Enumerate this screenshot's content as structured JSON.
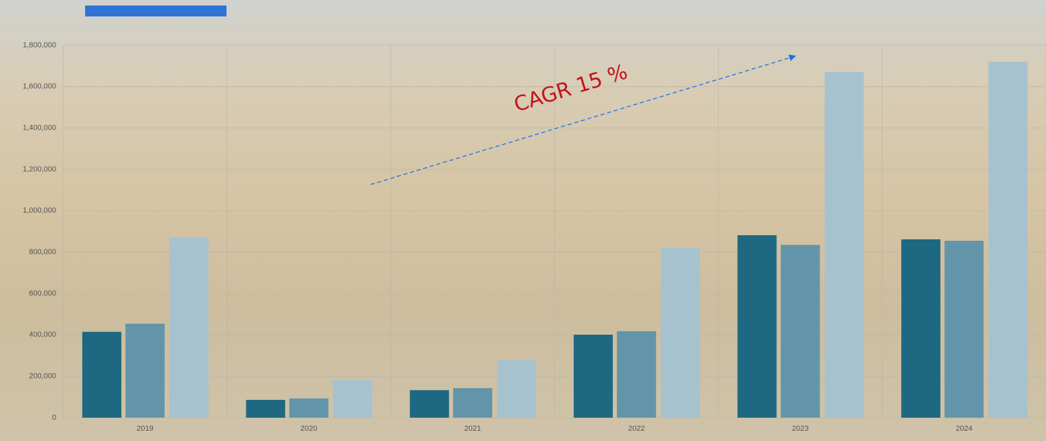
{
  "chart_data": {
    "type": "bar",
    "annotation": "CAGR 15 %",
    "categories": [
      "2019",
      "2020",
      "2021",
      "2022",
      "2023",
      "2024"
    ],
    "series": [
      {
        "color": "#1f6882",
        "values": [
          415000,
          86000,
          133000,
          401000,
          882000,
          862000
        ]
      },
      {
        "color": "#6395aa",
        "values": [
          454000,
          93000,
          143000,
          418000,
          835000,
          855000
        ]
      },
      {
        "color": "#a6c2cf",
        "values": [
          872000,
          182000,
          278000,
          822000,
          1671000,
          1720000
        ]
      }
    ],
    "ylim": [
      0,
      1800000
    ],
    "yticks": [
      0,
      {
        "value": 200000,
        "label": "200,000"
      },
      {
        "value": 400000,
        "label": "400,000"
      },
      {
        "value": 600000,
        "label": "600,000"
      },
      {
        "value": 800000,
        "label": "800,000"
      },
      {
        "value": 1000000,
        "label": "1,000,000"
      },
      {
        "value": 1200000,
        "label": "1,200,000"
      },
      {
        "value": 1400000,
        "label": "1,400,000"
      },
      {
        "value": 1600000,
        "label": "1,600,000"
      },
      {
        "value": 1800000,
        "label": "1,800,000"
      }
    ],
    "grid": true
  }
}
